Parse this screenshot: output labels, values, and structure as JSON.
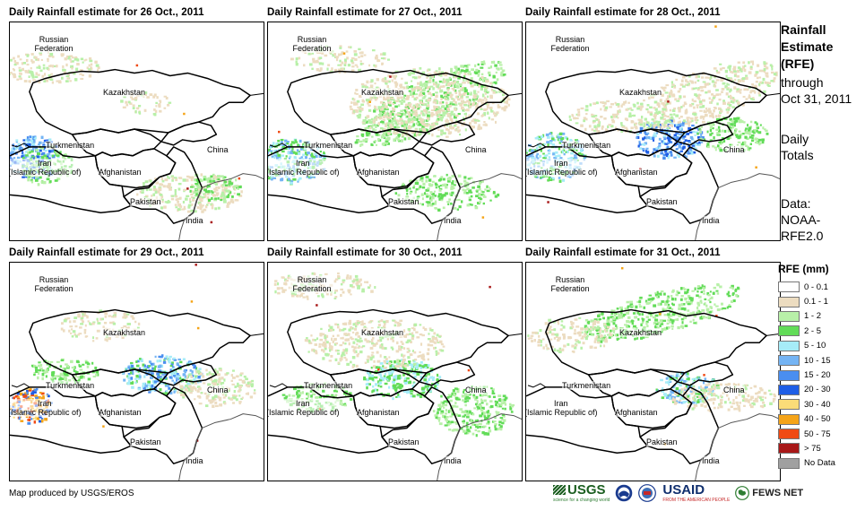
{
  "panels": [
    {
      "title": "Daily Rainfall estimate for 26 Oct., 2011"
    },
    {
      "title": "Daily Rainfall estimate for 27 Oct., 2011"
    },
    {
      "title": "Daily Rainfall estimate for 28 Oct., 2011"
    },
    {
      "title": "Daily Rainfall estimate for 29 Oct., 2011"
    },
    {
      "title": "Daily Rainfall estimate for 30 Oct., 2011"
    },
    {
      "title": "Daily Rainfall estimate for 31 Oct., 2011"
    }
  ],
  "countries": {
    "russia": "Russian Federation",
    "kazakhstan": "Kazakhstan",
    "turkmenistan": "Turkmenistan",
    "china": "China",
    "iran": "Iran (Islamic Republic of)",
    "afghanistan": "Afghanistan",
    "pakistan": "Pakistan",
    "india": "India"
  },
  "sidebar": {
    "title_line1": "Rainfall",
    "title_line2": "Estimate",
    "title_line3": "(RFE)",
    "through_line1": "through",
    "through_line2": "Oct 31, 2011",
    "totals_line1": "Daily",
    "totals_line2": "Totals",
    "data_line1": "Data:",
    "data_line2": "NOAA-",
    "data_line3": "RFE2.0"
  },
  "legend": {
    "title": "RFE (mm)",
    "items": [
      {
        "label": "0 - 0.1",
        "color": "#ffffff"
      },
      {
        "label": "0.1 - 1",
        "color": "#ecdcc0"
      },
      {
        "label": "1 - 2",
        "color": "#b8f0a8"
      },
      {
        "label": "2 - 5",
        "color": "#62dc58"
      },
      {
        "label": "5 - 10",
        "color": "#a6ecf8"
      },
      {
        "label": "10 - 15",
        "color": "#74b4f4"
      },
      {
        "label": "15 - 20",
        "color": "#4a8ef0"
      },
      {
        "label": "20 - 30",
        "color": "#1e5ee6"
      },
      {
        "label": "30 - 40",
        "color": "#fadc78"
      },
      {
        "label": "40 - 50",
        "color": "#f5a418"
      },
      {
        "label": "50 - 75",
        "color": "#f04a14"
      },
      {
        "label": "> 75",
        "color": "#a81818"
      },
      {
        "label": "No Data",
        "color": "#a0a0a0"
      }
    ]
  },
  "footer": {
    "credit": "Map produced by USGS/EROS",
    "usgs": "USGS",
    "usgs_tagline": "science for a changing world",
    "usaid": "USAID",
    "usaid_tagline": "FROM THE AMERICAN PEOPLE",
    "fewsnet": "FEWS NET"
  }
}
